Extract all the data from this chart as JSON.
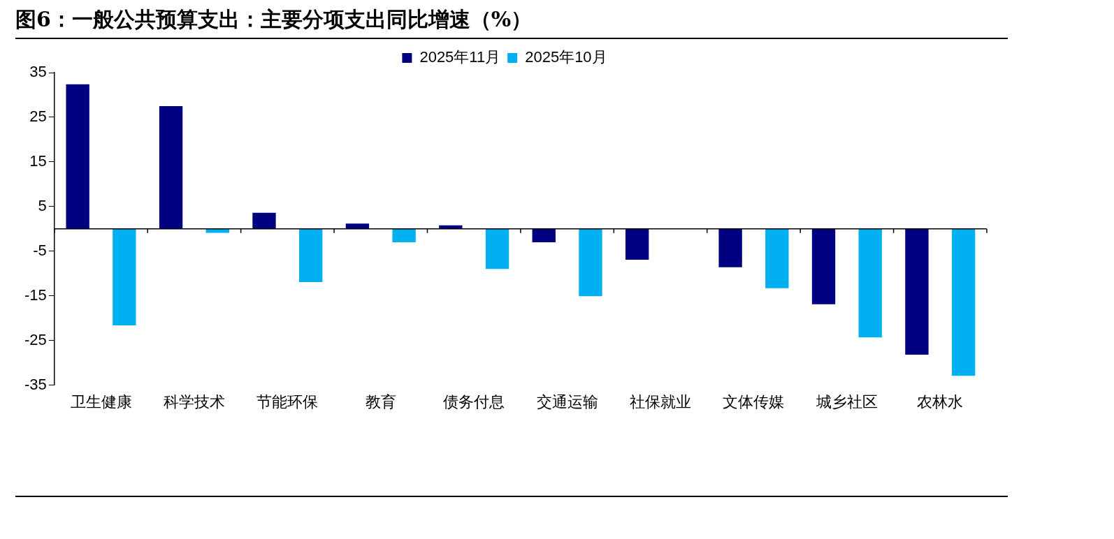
{
  "chart_data": {
    "type": "bar",
    "title": "图6：一般公共预算支出：主要分项支出同比增速（%）",
    "categories": [
      "卫生健康",
      "科学技术",
      "节能环保",
      "教育",
      "债务付息",
      "交通运输",
      "社保就业",
      "文体传媒",
      "城乡社区",
      "农林水"
    ],
    "series": [
      {
        "name": "2025年11月",
        "color": "#000080",
        "values": [
          32.4,
          27.5,
          3.6,
          1.2,
          0.8,
          -3.0,
          -6.9,
          -8.6,
          -16.9,
          -28.2
        ]
      },
      {
        "name": "2025年10月",
        "color": "#00b0f0",
        "values": [
          -21.6,
          -0.9,
          -11.9,
          -3.0,
          -9.0,
          -15.1,
          0,
          -13.3,
          -24.3,
          -32.9
        ]
      }
    ],
    "ylim": [
      -35,
      35
    ],
    "yticks": [
      35,
      25,
      15,
      5,
      -5,
      -15,
      -25,
      -35
    ],
    "grid": false,
    "legend": "top"
  }
}
